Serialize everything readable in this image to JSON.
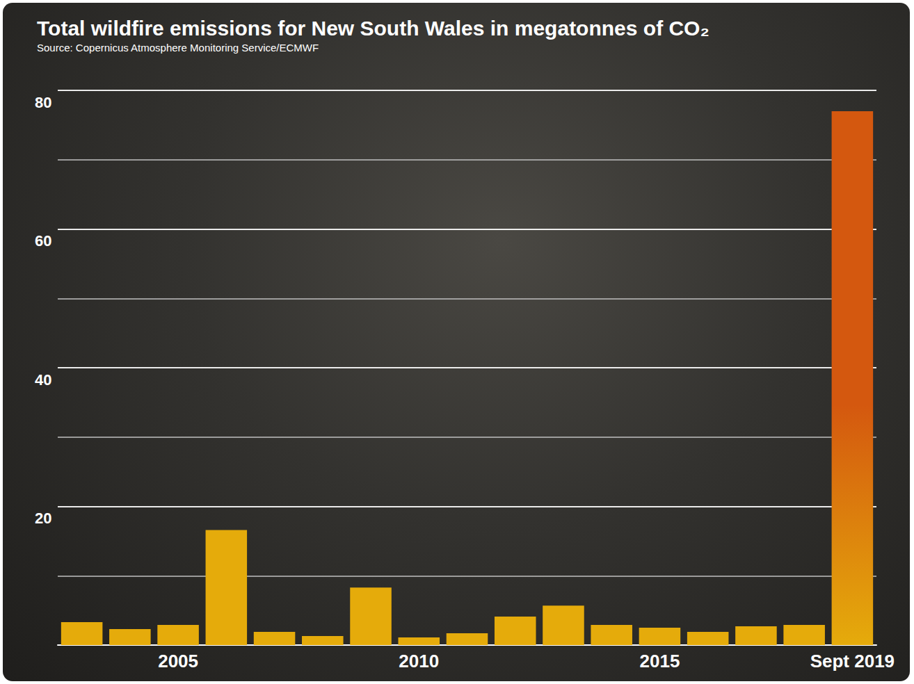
{
  "chart_data": {
    "type": "bar",
    "title": "Total wildfire emissions for New South Wales in megatonnes of CO₂",
    "subtitle": "Source: Copernicus Atmosphere Monitoring Service/ECMWF",
    "categories": [
      null,
      null,
      "2005",
      null,
      null,
      null,
      null,
      "2010",
      null,
      null,
      null,
      null,
      "2015",
      null,
      null,
      null,
      "Sept 2019"
    ],
    "values": [
      3.3,
      2.3,
      2.9,
      16.6,
      1.9,
      1.3,
      8.3,
      1.1,
      1.7,
      4.1,
      5.7,
      2.9,
      2.5,
      1.9,
      2.7,
      2.9,
      77
    ],
    "colors": [
      "#e5ab0b",
      "#e5ab0b",
      "#e5ab0b",
      "#e5ab0b",
      "#e5ab0b",
      "#e5ab0b",
      "#e5ab0b",
      "#e5ab0b",
      "#e5ab0b",
      "#e5ab0b",
      "#e5ab0b",
      "#e5ab0b",
      "#e5ab0b",
      "#e5ab0b",
      "#e5ab0b",
      "#e5ab0b",
      "#d4580f"
    ],
    "ylim": [
      0,
      80
    ],
    "yticks": [
      20,
      40,
      60,
      80
    ],
    "grid": true,
    "data_labels": false
  }
}
